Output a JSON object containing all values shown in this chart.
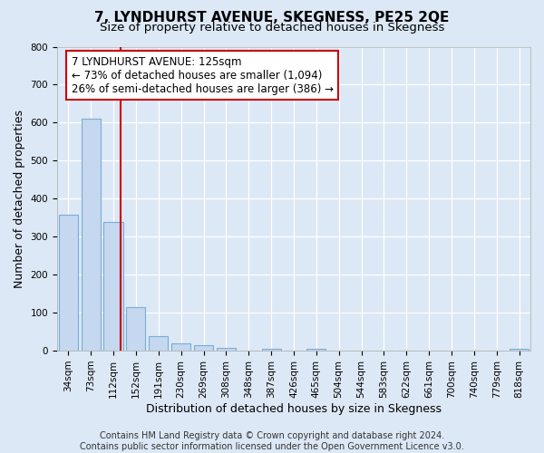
{
  "title": "7, LYNDHURST AVENUE, SKEGNESS, PE25 2QE",
  "subtitle": "Size of property relative to detached houses in Skegness",
  "xlabel": "Distribution of detached houses by size in Skegness",
  "ylabel": "Number of detached properties",
  "bar_labels": [
    "34sqm",
    "73sqm",
    "112sqm",
    "152sqm",
    "191sqm",
    "230sqm",
    "269sqm",
    "308sqm",
    "348sqm",
    "387sqm",
    "426sqm",
    "465sqm",
    "504sqm",
    "544sqm",
    "583sqm",
    "622sqm",
    "661sqm",
    "700sqm",
    "740sqm",
    "779sqm",
    "818sqm"
  ],
  "bar_values": [
    357,
    610,
    338,
    115,
    38,
    20,
    15,
    8,
    0,
    5,
    0,
    4,
    0,
    0,
    0,
    0,
    0,
    0,
    0,
    0,
    5
  ],
  "bar_color": "#c5d8f0",
  "bar_edge_color": "#7aadd4",
  "property_line_x": 2.33,
  "property_line_color": "#cc0000",
  "annotation_line1": "7 LYNDHURST AVENUE: 125sqm",
  "annotation_line2": "← 73% of detached houses are smaller (1,094)",
  "annotation_line3": "26% of semi-detached houses are larger (386) →",
  "annotation_box_color": "#cc0000",
  "ylim": [
    0,
    800
  ],
  "yticks": [
    0,
    100,
    200,
    300,
    400,
    500,
    600,
    700,
    800
  ],
  "footer_line1": "Contains HM Land Registry data © Crown copyright and database right 2024.",
  "footer_line2": "Contains public sector information licensed under the Open Government Licence v3.0.",
  "bg_color": "#dce8f5",
  "plot_bg_color": "#dce8f5",
  "grid_color": "#ffffff",
  "title_fontsize": 11,
  "subtitle_fontsize": 9.5,
  "axis_label_fontsize": 9,
  "tick_fontsize": 7.5,
  "footer_fontsize": 7,
  "annotation_fontsize": 8.5
}
